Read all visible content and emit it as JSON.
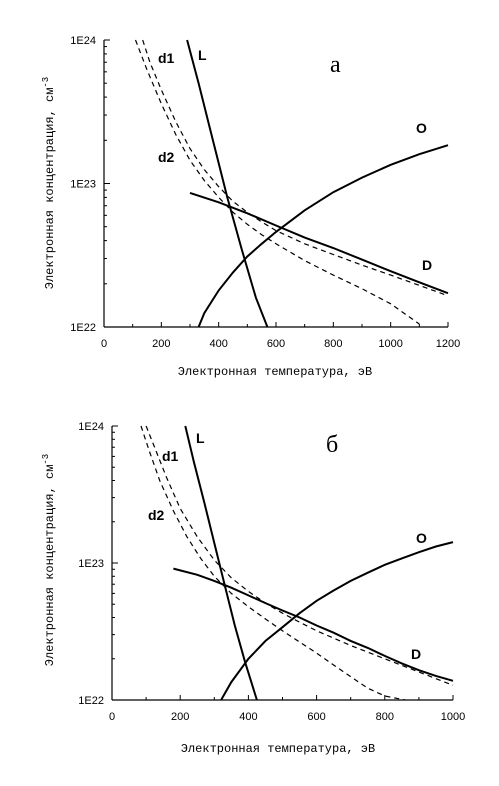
{
  "chart_data": [
    {
      "type": "line",
      "panel_label": "а",
      "xlabel": "Электронная температура,  эВ",
      "ylabel": "Электронная концентрация, см",
      "ylabel_sup": "-3",
      "xlim": [
        0,
        1200
      ],
      "ylim": [
        1e+22,
        1e+24
      ],
      "y_scale": "log",
      "x_ticks": [
        "0",
        "200",
        "400",
        "600",
        "800",
        "1000",
        "1200"
      ],
      "y_ticks": [
        "1E22",
        "1E23",
        "1E24"
      ],
      "series": [
        {
          "name": "L",
          "style": "solid",
          "x": [
            290,
            330,
            380,
            430,
            480,
            530,
            570
          ],
          "y": [
            1e+24,
            5e+23,
            2e+23,
            8e+22,
            3.5e+22,
            1.6e+22,
            1e+22
          ]
        },
        {
          "name": "d1",
          "style": "dashed",
          "x": [
            135,
            160,
            200,
            250,
            300,
            350,
            400,
            450,
            500,
            550,
            600,
            700,
            800,
            900,
            1000,
            1100,
            1200
          ],
          "y": [
            1e+24,
            7e+23,
            4.5e+23,
            2.7e+23,
            1.75e+23,
            1.25e+23,
            9.5e+22,
            7.5e+22,
            6.3e+22,
            5.4e+22,
            4.7e+22,
            3.8e+22,
            3.2e+22,
            2.7e+22,
            2.3e+22,
            1.95e+22,
            1.65e+22
          ]
        },
        {
          "name": "d2",
          "style": "dashed",
          "x": [
            110,
            150,
            200,
            250,
            300,
            350,
            400,
            450,
            500,
            550,
            600,
            700,
            800,
            900,
            1000,
            1100
          ],
          "y": [
            1e+24,
            6.2e+23,
            3.6e+23,
            2.2e+23,
            1.45e+23,
            1.05e+23,
            8e+22,
            6.3e+22,
            5.2e+22,
            4.4e+22,
            3.8e+22,
            2.9e+22,
            2.3e+22,
            1.85e+22,
            1.45e+22,
            1.05e+22
          ]
        },
        {
          "name": "O",
          "style": "solid",
          "x": [
            330,
            350,
            400,
            450,
            500,
            550,
            600,
            700,
            800,
            900,
            1000,
            1100,
            1200
          ],
          "y": [
            1e+22,
            1.25e+22,
            1.8e+22,
            2.4e+22,
            3.1e+22,
            3.8e+22,
            4.6e+22,
            6.5e+22,
            8.7e+22,
            1.1e+23,
            1.35e+23,
            1.6e+23,
            1.85e+23
          ]
        },
        {
          "name": "D",
          "style": "solid",
          "x": [
            300,
            400,
            500,
            600,
            700,
            800,
            900,
            1000,
            1100,
            1200
          ],
          "y": [
            8.6e+22,
            7.4e+22,
            6.2e+22,
            5.1e+22,
            4.2e+22,
            3.55e+22,
            2.95e+22,
            2.45e+22,
            2.05e+22,
            1.72e+22
          ]
        }
      ]
    },
    {
      "type": "line",
      "panel_label": "б",
      "xlabel": "Электронная температура,  эВ",
      "ylabel": "Электронная концентрация, см",
      "ylabel_sup": "-3",
      "xlim": [
        0,
        1000
      ],
      "ylim": [
        1e+22,
        1e+24
      ],
      "y_scale": "log",
      "x_ticks": [
        "0",
        "200",
        "400",
        "600",
        "800",
        "1000"
      ],
      "y_ticks": [
        "1E22",
        "1E23",
        "1E24"
      ],
      "series": [
        {
          "name": "L",
          "style": "solid",
          "x": [
            215,
            240,
            270,
            300,
            330,
            360,
            390,
            425
          ],
          "y": [
            1e+24,
            5.5e+23,
            2.8e+23,
            1.4e+23,
            7e+22,
            3.5e+22,
            1.9e+22,
            1e+22
          ]
        },
        {
          "name": "d1",
          "style": "dashed",
          "x": [
            100,
            130,
            160,
            200,
            250,
            300,
            350,
            400,
            450,
            500,
            550,
            600,
            700,
            800,
            900,
            1000
          ],
          "y": [
            1e+24,
            6.5e+23,
            4.2e+23,
            2.5e+23,
            1.55e+23,
            1.05e+23,
            7.8e+22,
            6.2e+22,
            5.1e+22,
            4.3e+22,
            3.7e+22,
            3.2e+22,
            2.5e+22,
            2e+22,
            1.6e+22,
            1.28e+22
          ]
        },
        {
          "name": "d2",
          "style": "dashed",
          "x": [
            85,
            110,
            140,
            180,
            220,
            260,
            300,
            350,
            400,
            450,
            500,
            550,
            600,
            650,
            700,
            750,
            800,
            860
          ],
          "y": [
            1e+24,
            6.5e+23,
            4e+23,
            2.4e+23,
            1.55e+23,
            1.08e+23,
            8e+22,
            6e+22,
            4.8e+22,
            3.9e+22,
            3.2e+22,
            2.65e+22,
            2.2e+22,
            1.8e+22,
            1.48e+22,
            1.22e+22,
            1.07e+22,
            1e+22
          ]
        },
        {
          "name": "O",
          "style": "solid",
          "x": [
            320,
            350,
            400,
            450,
            500,
            550,
            600,
            650,
            700,
            750,
            800,
            850,
            900,
            950,
            1000
          ],
          "y": [
            1e+22,
            1.35e+22,
            2e+22,
            2.7e+22,
            3.4e+22,
            4.3e+22,
            5.3e+22,
            6.3e+22,
            7.4e+22,
            8.5e+22,
            9.7e+22,
            1.08e+23,
            1.2e+23,
            1.32e+23,
            1.42e+23
          ]
        },
        {
          "name": "D",
          "style": "solid",
          "x": [
            180,
            250,
            300,
            350,
            400,
            450,
            500,
            550,
            600,
            650,
            700,
            750,
            800,
            850,
            900,
            950,
            1000
          ],
          "y": [
            9.1e+22,
            8.2e+22,
            7.4e+22,
            6.6e+22,
            5.8e+22,
            5.1e+22,
            4.5e+22,
            4e+22,
            3.5e+22,
            3.1e+22,
            2.7e+22,
            2.4e+22,
            2.1e+22,
            1.85e+22,
            1.65e+22,
            1.5e+22,
            1.38e+22
          ]
        }
      ]
    }
  ]
}
